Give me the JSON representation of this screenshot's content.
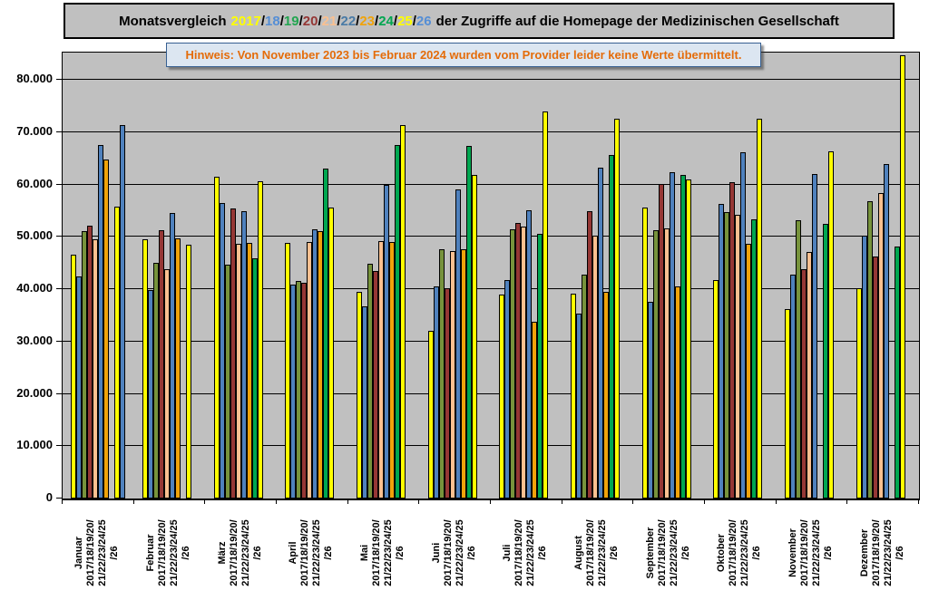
{
  "title": {
    "prefix": "Monatsvergleich",
    "suffix": "der Zugriffe auf die Homepage der Medizinischen Gesellschaft",
    "years": [
      {
        "text": "2017",
        "color": "#ffff00"
      },
      {
        "text": "18",
        "color": "#558ed5"
      },
      {
        "text": "19",
        "color": "#22a550"
      },
      {
        "text": "20",
        "color": "#953735"
      },
      {
        "text": "21",
        "color": "#fac090"
      },
      {
        "text": "22",
        "color": "#4a7ba6"
      },
      {
        "text": "23",
        "color": "#f0a30a"
      },
      {
        "text": "24",
        "color": "#00a650"
      },
      {
        "text": "25",
        "color": "#ffff00"
      },
      {
        "text": "26",
        "color": "#558ed5"
      }
    ],
    "slash_color": "#000000"
  },
  "notice": {
    "text": "Hinweis: Von November 2023 bis Februar 2024 wurden vom Provider leider keine Werte übermittelt.",
    "text_color": "#e46c0a",
    "background": "#dce6f1",
    "border_color": "#376092"
  },
  "chart_data": {
    "type": "bar",
    "title": "Monatsvergleich 2017/18/19/20/21/22/23/24/25/26 der Zugriffe auf die Homepage der Medizinischen Gesellschaft",
    "annotation": "Hinweis: Von November 2023 bis Februar 2024 wurden vom Provider leider keine Werte übermittelt.",
    "grid": true,
    "plot_background": "#c0c0c0",
    "legend_position": "none (years colored in title)",
    "categories": [
      "Januar",
      "Februar",
      "März",
      "April",
      "Mai",
      "Juni",
      "Juli",
      "August",
      "September",
      "Oktober",
      "November",
      "Dezember"
    ],
    "x_sublabel_lines": [
      "2017/18/19/20/",
      "21/22/23/24/25",
      "/26"
    ],
    "ylim": [
      0,
      85200
    ],
    "ytick_step": 10000,
    "ytick_labels": [
      "0",
      "10.000",
      "20.000",
      "30.000",
      "40.000",
      "50.000",
      "60.000",
      "70.000",
      "80.000"
    ],
    "series": [
      {
        "name": "2017",
        "color": "#ffff00",
        "values": [
          46500,
          49500,
          61500,
          48900,
          39400,
          32100,
          39000,
          39200,
          55600,
          41800,
          36200,
          40200
        ]
      },
      {
        "name": "2018",
        "color": "#4f81bd",
        "values": [
          42500,
          39800,
          56400,
          40900,
          36700,
          40600,
          41700,
          35300,
          37600,
          56200,
          42800,
          50200
        ]
      },
      {
        "name": "2019",
        "color": "#77933c",
        "values": [
          51100,
          45000,
          44700,
          41500,
          44800,
          47600,
          51500,
          42700,
          51200,
          54700,
          53100,
          56800
        ]
      },
      {
        "name": "2020",
        "color": "#953735",
        "values": [
          52100,
          51300,
          55400,
          41200,
          43500,
          40200,
          52600,
          54900,
          60100,
          60400,
          43800,
          46300
        ]
      },
      {
        "name": "2021",
        "color": "#fac090",
        "values": [
          49600,
          43900,
          48700,
          49000,
          49200,
          47200,
          51900,
          50300,
          51600,
          54200,
          47100,
          58400
        ]
      },
      {
        "name": "2022",
        "color": "#4f81bd",
        "values": [
          67600,
          54500,
          54900,
          51500,
          59900,
          59100,
          55100,
          63200,
          62300,
          66200,
          62000,
          63900
        ]
      },
      {
        "name": "2023",
        "color": "#f0a30a",
        "values": [
          64800,
          49700,
          48800,
          51100,
          49000,
          47700,
          33700,
          39500,
          40600,
          48600,
          null,
          null
        ]
      },
      {
        "name": "2024",
        "color": "#00a650",
        "values": [
          null,
          null,
          45900,
          63100,
          67600,
          67300,
          50600,
          65700,
          61800,
          53400,
          52400,
          48100
        ]
      },
      {
        "name": "2025",
        "color": "#ffff00",
        "values": [
          55800,
          48500,
          60600,
          55600,
          71400,
          61900,
          73900,
          72500,
          61000,
          72600,
          66300,
          84700
        ]
      },
      {
        "name": "2026",
        "color": "#4f81bd",
        "values": [
          71400,
          null,
          null,
          null,
          null,
          null,
          null,
          null,
          null,
          null,
          null,
          null
        ]
      }
    ]
  }
}
